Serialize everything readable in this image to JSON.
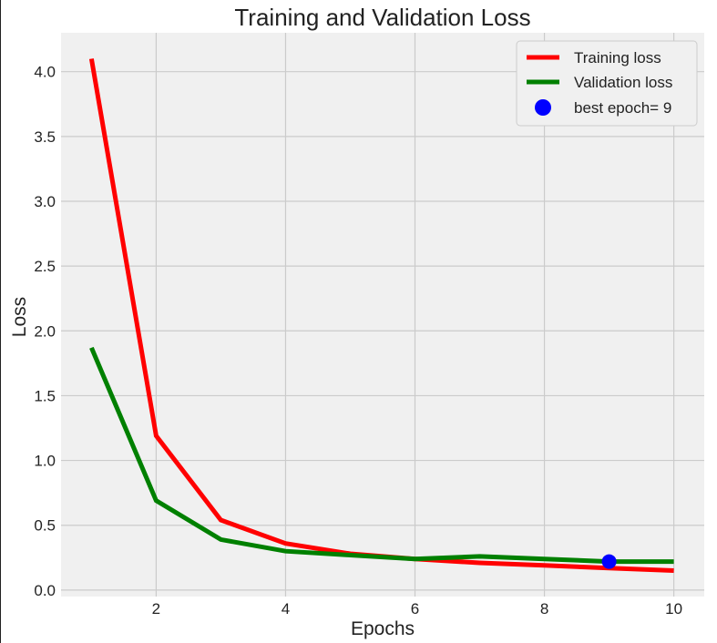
{
  "chart_data": {
    "type": "line",
    "title": "Training and Validation Loss",
    "xlabel": "Epochs",
    "ylabel": "Loss",
    "x": [
      1,
      2,
      3,
      4,
      5,
      6,
      7,
      8,
      9,
      10
    ],
    "xlim": [
      0.53,
      10.47
    ],
    "ylim": [
      -0.05,
      4.3
    ],
    "xticks": [
      2,
      4,
      6,
      8,
      10
    ],
    "yticks": [
      0.0,
      0.5,
      1.0,
      1.5,
      2.0,
      2.5,
      3.0,
      3.5,
      4.0
    ],
    "xtick_labels": [
      "2",
      "4",
      "6",
      "8",
      "10"
    ],
    "ytick_labels": [
      "0.0",
      "0.5",
      "1.0",
      "1.5",
      "2.0",
      "2.5",
      "3.0",
      "3.5",
      "4.0"
    ],
    "grid": true,
    "legend_position": "top-right",
    "series": [
      {
        "name": "Training loss",
        "color": "#ff0000",
        "values": [
          4.1,
          1.19,
          0.54,
          0.36,
          0.28,
          0.24,
          0.21,
          0.19,
          0.17,
          0.15
        ]
      },
      {
        "name": "Validation loss",
        "color": "#008000",
        "values": [
          1.87,
          0.69,
          0.39,
          0.3,
          0.27,
          0.24,
          0.26,
          0.24,
          0.22,
          0.22
        ]
      }
    ],
    "best_epoch": {
      "label": "best epoch= 9",
      "x": 9,
      "y": 0.22,
      "color": "#0000ff"
    }
  }
}
